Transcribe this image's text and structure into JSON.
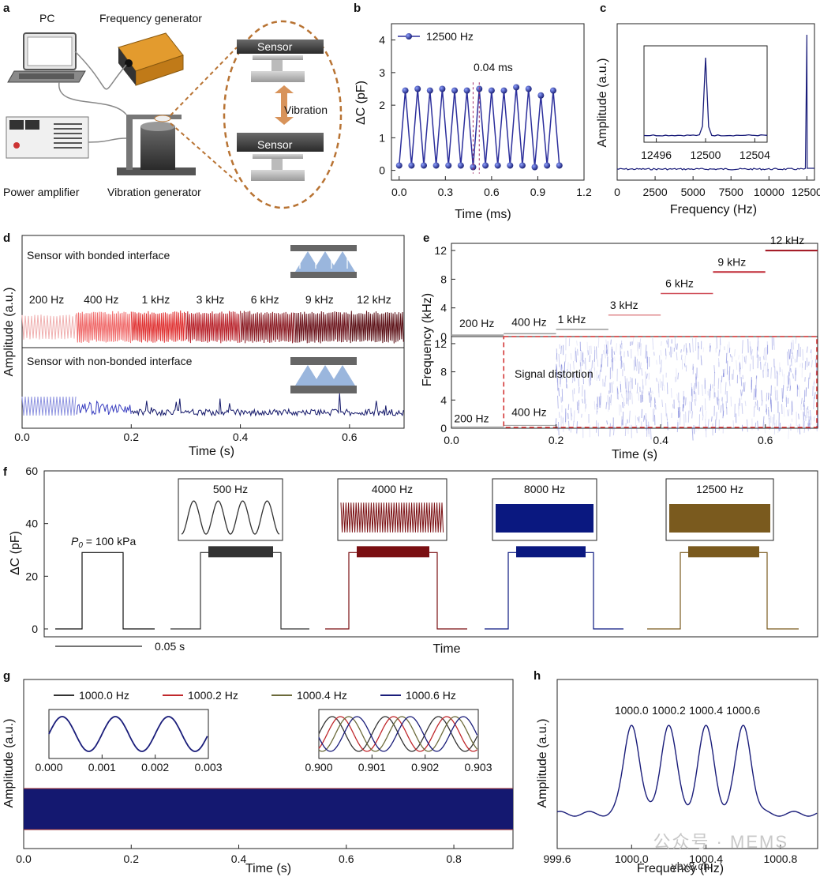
{
  "colors": {
    "navy": "#1a1d7a",
    "blue": "#2c2f9c",
    "dark": "#333333",
    "maroon": "#7a0f12",
    "gold": "#7a5a1e",
    "olive": "#6b6a3a",
    "red": "#c0282c",
    "orange": "#c8894e"
  },
  "panel_a": {
    "letter": "a",
    "pc": "PC",
    "frequency_generator": "Frequency generator",
    "sensor_top": "Sensor",
    "sensor_bottom": "Sensor",
    "vibration": "Vibration",
    "power_amplifier": "Power amplifier",
    "vibration_generator": "Vibration generator"
  },
  "chart_data": [
    {
      "id": "b",
      "letter": "b",
      "type": "line",
      "xlabel": "Time (ms)",
      "ylabel": "ΔC (pF)",
      "xlim": [
        -0.05,
        1.2
      ],
      "ylim": [
        -0.3,
        4.5
      ],
      "xticks": [
        "0.0",
        "0.3",
        "0.6",
        "0.9",
        "1.2"
      ],
      "yticks": [
        "0",
        "1",
        "2",
        "3",
        "4"
      ],
      "legend": "12500 Hz",
      "annotation": "0.04 ms",
      "series": [
        {
          "name": "12500 Hz",
          "x": [
            0,
            0.04,
            0.08,
            0.12,
            0.16,
            0.2,
            0.24,
            0.28,
            0.32,
            0.36,
            0.4,
            0.44,
            0.48,
            0.52,
            0.56,
            0.6,
            0.64,
            0.68,
            0.72,
            0.76,
            0.8,
            0.84,
            0.88,
            0.92,
            0.96,
            1.0,
            1.04
          ],
          "y": [
            0.15,
            2.45,
            0.15,
            2.5,
            0.15,
            2.45,
            0.15,
            2.5,
            0.15,
            2.45,
            0.15,
            2.45,
            0.1,
            2.5,
            0.15,
            2.45,
            0.15,
            2.45,
            0.15,
            2.55,
            0.15,
            2.5,
            0.1,
            2.3,
            0.15,
            2.45,
            0.15
          ]
        }
      ]
    },
    {
      "id": "c",
      "letter": "c",
      "type": "line",
      "xlabel": "Frequency (Hz)",
      "ylabel": "Amplitude (a.u.)",
      "xlim": [
        0,
        13000
      ],
      "xticks": [
        "0",
        "2500",
        "5000",
        "7500",
        "10000",
        "12500"
      ],
      "peak_hz": 12500,
      "inset": {
        "xticks": [
          "12496",
          "12500",
          "12504"
        ],
        "peak_hz": 12500
      }
    },
    {
      "id": "d",
      "letter": "d",
      "type": "line",
      "xlabel": "Time (s)",
      "ylabel": "Amplitude (a.u.)",
      "xlim": [
        0,
        0.7
      ],
      "xticks": [
        "0.0",
        "0.2",
        "0.4",
        "0.6"
      ],
      "top_title": "Sensor with bonded interface",
      "bottom_title": "Sensor with non-bonded interface",
      "segments": [
        "200 Hz",
        "400 Hz",
        "1 kHz",
        "3 kHz",
        "6 kHz",
        "9 kHz",
        "12 kHz"
      ],
      "segment_colors": [
        "#f0b0b0",
        "#f06a6a",
        "#e03232",
        "#b8222a",
        "#8a1a22",
        "#6a121a",
        "#5a0e14"
      ]
    },
    {
      "id": "e",
      "letter": "e",
      "type": "heatmap",
      "xlabel": "Time (s)",
      "ylabel": "Frequency (kHz)",
      "xlim": [
        0,
        0.7
      ],
      "xticks": [
        "0.0",
        "0.2",
        "0.4",
        "0.6"
      ],
      "top_yticks": [
        "0",
        "4",
        "8",
        "12"
      ],
      "bottom_yticks": [
        "0",
        "4",
        "8",
        "12"
      ],
      "steps": [
        {
          "label": "200 Hz",
          "t0": 0.0,
          "t1": 0.1,
          "f": 0.2
        },
        {
          "label": "400 Hz",
          "t0": 0.1,
          "t1": 0.2,
          "f": 0.4
        },
        {
          "label": "1 kHz",
          "t0": 0.2,
          "t1": 0.3,
          "f": 1
        },
        {
          "label": "3 kHz",
          "t0": 0.3,
          "t1": 0.4,
          "f": 3
        },
        {
          "label": "6 kHz",
          "t0": 0.4,
          "t1": 0.5,
          "f": 6
        },
        {
          "label": "9 kHz",
          "t0": 0.5,
          "t1": 0.6,
          "f": 9
        },
        {
          "label": "12 kHz",
          "t0": 0.6,
          "t1": 0.7,
          "f": 12
        }
      ],
      "bottom_labels": [
        "200 Hz",
        "400 Hz"
      ],
      "distortion": "Signal distortion"
    },
    {
      "id": "f",
      "letter": "f",
      "type": "line",
      "xlabel": "Time",
      "ylabel": "ΔC (pF)",
      "ylim": [
        0,
        60
      ],
      "yticks": [
        "0",
        "20",
        "40",
        "60"
      ],
      "pressure": "P",
      "pressure_sub": "0",
      "pressure_value": " = 100 kPa",
      "scale_bar": "0.05 s",
      "level": 29,
      "pulses": [
        {
          "label": "",
          "color": "#111111"
        },
        {
          "label": "500 Hz",
          "color": "#333333"
        },
        {
          "label": "4000 Hz",
          "color": "#7a0f12"
        },
        {
          "label": "8000 Hz",
          "color": "#0a1880"
        },
        {
          "label": "12500 Hz",
          "color": "#7a5a1e"
        }
      ]
    },
    {
      "id": "g",
      "letter": "g",
      "type": "line",
      "xlabel": "Time (s)",
      "ylabel": "Amplitude (a.u.)",
      "xlim": [
        0,
        0.91
      ],
      "xticks": [
        "0.0",
        "0.2",
        "0.4",
        "0.6",
        "0.8"
      ],
      "legend": [
        {
          "name": "1000.0 Hz",
          "color": "#333333"
        },
        {
          "name": "1000.2 Hz",
          "color": "#c0282c"
        },
        {
          "name": "1000.4 Hz",
          "color": "#6b6a3a"
        },
        {
          "name": "1000.6 Hz",
          "color": "#1a1d7a"
        }
      ],
      "inset1_xticks": [
        "0.000",
        "0.001",
        "0.002",
        "0.003"
      ],
      "inset2_xticks": [
        "0.900",
        "0.901",
        "0.902",
        "0.903"
      ]
    },
    {
      "id": "h",
      "letter": "h",
      "type": "line",
      "xlabel": "Frequency (Hz)",
      "ylabel": "Amplitude (a.u.)",
      "xlim": [
        999.6,
        1001.0
      ],
      "xticks": [
        "999.6",
        "1000.0",
        "1000.4",
        "1000.8"
      ],
      "peaks": [
        {
          "label": "1000.0",
          "x": 1000.0
        },
        {
          "label": "1000.2",
          "x": 1000.2
        },
        {
          "label": "1000.4",
          "x": 1000.4
        },
        {
          "label": "1000.6",
          "x": 1000.6
        }
      ]
    }
  ],
  "watermark": "公众号 · MEMS",
  "watermark2": "ybx8.ch"
}
